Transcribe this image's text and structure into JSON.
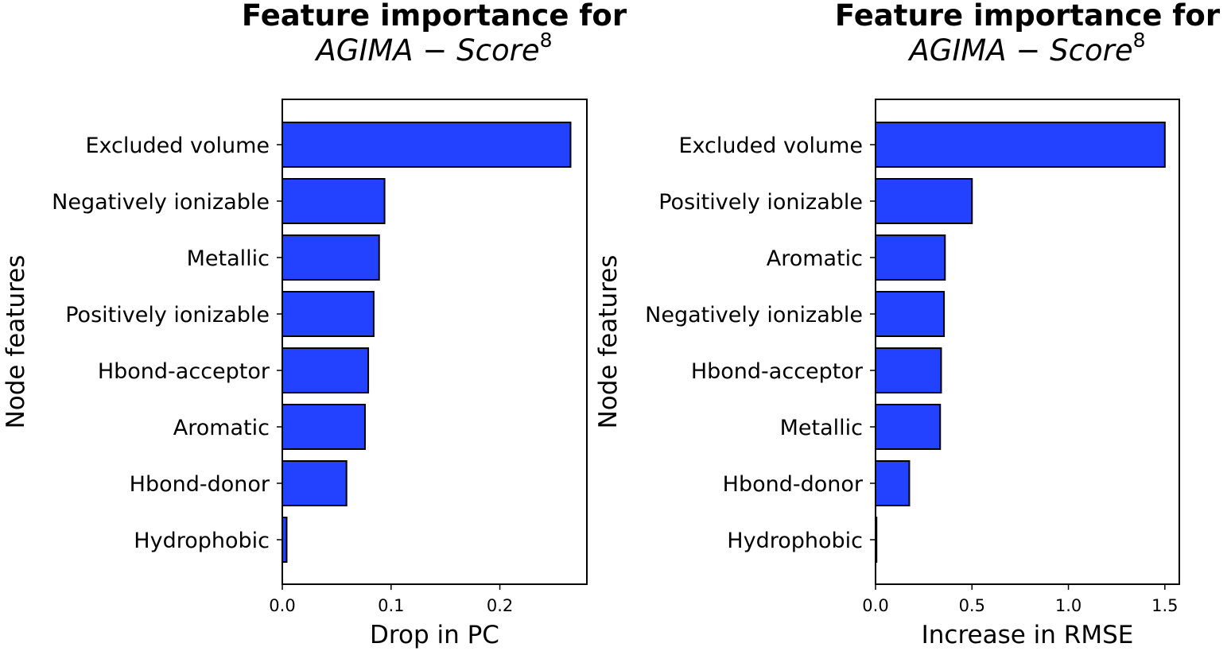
{
  "colors": {
    "bar_fill": "#2242ff",
    "bar_edge": "#000000"
  },
  "chart_data": [
    {
      "type": "bar",
      "orientation": "horizontal",
      "title": "Feature importance for",
      "subtitle": "AGIMA − Score",
      "subtitle_sup": "8",
      "xlabel": "Drop in PC",
      "ylabel": "Node features",
      "categories": [
        "Excluded volume",
        "Negatively ionizable",
        "Metallic",
        "Positively ionizable",
        "Hbond-acceptor",
        "Aromatic",
        "Hbond-donor",
        "Hydrophobic"
      ],
      "values": [
        0.265,
        0.094,
        0.089,
        0.084,
        0.079,
        0.076,
        0.059,
        0.004
      ],
      "xlim": [
        0,
        0.28
      ],
      "xticks": [
        0.0,
        0.1,
        0.2
      ],
      "xtick_labels": [
        "0.0",
        "0.1",
        "0.2"
      ]
    },
    {
      "type": "bar",
      "orientation": "horizontal",
      "title": "Feature importance for",
      "subtitle": "AGIMA − Score",
      "subtitle_sup": "8",
      "xlabel": "Increase in RMSE",
      "ylabel": "Node features",
      "categories": [
        "Excluded volume",
        "Positively ionizable",
        "Aromatic",
        "Negatively ionizable",
        "Hbond-acceptor",
        "Metallic",
        "Hbond-donor",
        "Hydrophobic"
      ],
      "values": [
        1.5,
        0.5,
        0.36,
        0.355,
        0.34,
        0.335,
        0.175,
        0.005
      ],
      "xlim": [
        0,
        1.575
      ],
      "xticks": [
        0.0,
        0.5,
        1.0,
        1.5
      ],
      "xtick_labels": [
        "0.0",
        "0.5",
        "1.0",
        "1.5"
      ]
    }
  ]
}
